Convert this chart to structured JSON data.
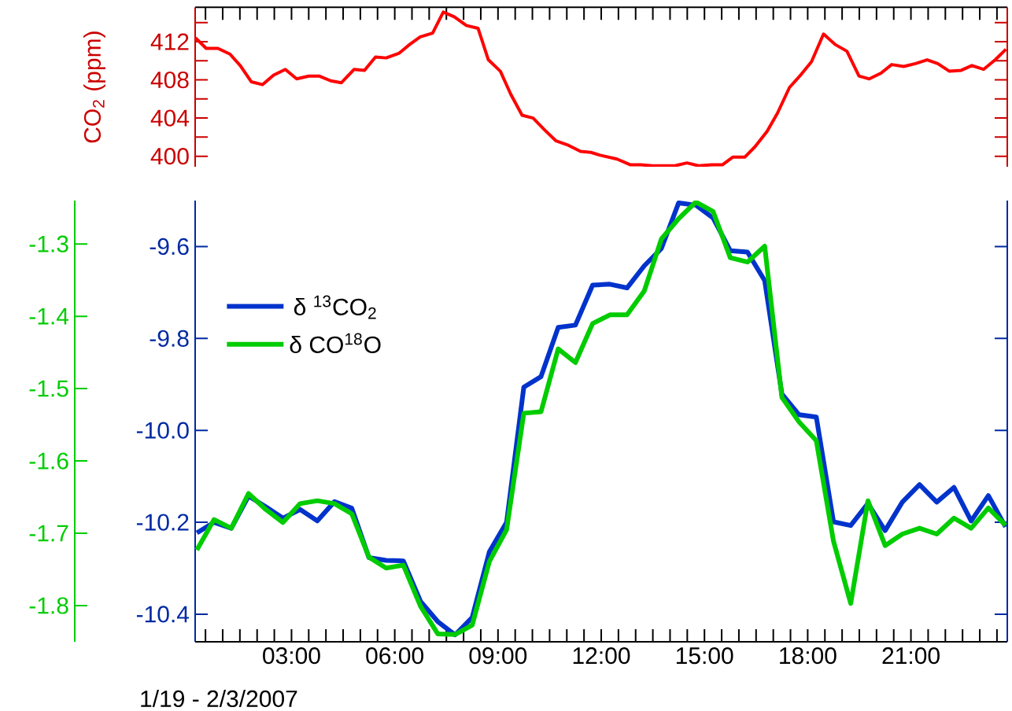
{
  "chart_data": [
    {
      "type": "line",
      "ylabel": "CO$_{2}$ (ppm)",
      "color": "#ff0000",
      "line_style": "solid",
      "tick_labels": "y",
      "x": [
        0.21,
        0.52,
        0.86,
        1.21,
        1.51,
        1.83,
        2.16,
        2.48,
        2.82,
        3.15,
        3.5,
        3.8,
        4.14,
        4.45,
        4.82,
        5.12,
        5.44,
        5.75,
        6.13,
        6.43,
        6.74,
        7.1,
        7.41,
        7.73,
        8.08,
        8.42,
        8.72,
        9.07,
        9.37,
        9.7,
        10.02,
        10.37,
        10.69,
        11.01,
        11.4,
        11.7,
        11.97,
        12.46,
        12.85,
        13.15,
        13.49,
        13.84,
        14.14,
        14.49,
        14.83,
        15.21,
        15.52,
        15.82,
        16.17,
        16.47,
        16.82,
        17.12,
        17.47,
        17.77,
        18.11,
        18.46,
        18.8,
        19.14,
        19.49,
        19.79,
        20.13,
        20.44,
        20.79,
        21.13,
        21.47,
        21.78,
        22.12,
        22.46,
        22.77,
        23.11,
        23.45,
        23.76
      ],
      "values": [
        412.4,
        411.3,
        411.3,
        410.7,
        409.5,
        407.8,
        407.5,
        408.5,
        409.1,
        408.1,
        408.4,
        408.4,
        407.9,
        407.7,
        409.1,
        409.0,
        410.4,
        410.3,
        410.8,
        411.7,
        412.5,
        412.9,
        415.1,
        414.6,
        413.7,
        413.4,
        410.1,
        408.9,
        406.5,
        404.3,
        404.0,
        402.7,
        401.6,
        401.2,
        400.5,
        400.4,
        400.1,
        399.7,
        399.1,
        399.1,
        399.0,
        399.0,
        399.0,
        399.3,
        399.0,
        399.1,
        399.1,
        399.9,
        399.9,
        401.0,
        402.6,
        404.5,
        407.2,
        408.4,
        409.9,
        412.8,
        411.7,
        411.0,
        408.4,
        408.1,
        408.7,
        409.6,
        409.4,
        409.7,
        410.1,
        409.7,
        408.9,
        409.0,
        409.5,
        409.1,
        410.1,
        411.2
      ],
      "xlim": [
        0.2,
        23.8
      ],
      "ylim": [
        398.9,
        415.6
      ],
      "xticks": [
        {
          "value": 0.5,
          "label": null
        },
        {
          "value": 1,
          "label": null
        },
        {
          "value": 1.5,
          "label": null
        },
        {
          "value": 2,
          "label": null
        },
        {
          "value": 2.5,
          "label": null
        },
        3,
        {
          "value": 3.5,
          "label": null
        },
        {
          "value": 4,
          "label": null
        },
        {
          "value": 4.5,
          "label": null
        },
        {
          "value": 5,
          "label": null
        },
        {
          "value": 5.5,
          "label": null
        },
        6,
        {
          "value": 6.5,
          "label": null
        },
        {
          "value": 7,
          "label": null
        },
        {
          "value": 7.5,
          "label": null
        },
        {
          "value": 8,
          "label": null
        },
        {
          "value": 8.5,
          "label": null
        },
        9,
        {
          "value": 9.5,
          "label": null
        },
        {
          "value": 10,
          "label": null
        },
        {
          "value": 10.5,
          "label": null
        },
        {
          "value": 11,
          "label": null
        },
        {
          "value": 11.5,
          "label": null
        },
        12,
        {
          "value": 12.5,
          "label": null
        },
        {
          "value": 13,
          "label": null
        },
        {
          "value": 13.5,
          "label": null
        },
        {
          "value": 14,
          "label": null
        },
        {
          "value": 14.5,
          "label": null
        },
        15,
        {
          "value": 15.5,
          "label": null
        },
        {
          "value": 16,
          "label": null
        },
        {
          "value": 16.5,
          "label": null
        },
        {
          "value": 17,
          "label": null
        },
        {
          "value": 17.5,
          "label": null
        },
        18,
        {
          "value": 18.5,
          "label": null
        },
        {
          "value": 19,
          "label": null
        },
        {
          "value": 19.5,
          "label": null
        },
        {
          "value": 20,
          "label": null
        },
        {
          "value": 20.5,
          "label": null
        },
        21,
        {
          "value": 21.5,
          "label": null
        },
        {
          "value": 22,
          "label": null
        },
        {
          "value": 22.5,
          "label": null
        },
        {
          "value": 23,
          "label": null
        },
        {
          "value": 23.5,
          "label": null
        }
      ],
      "yticks": [
        400,
        {
          "value": 402,
          "label": null
        },
        404,
        {
          "value": 406,
          "label": null
        },
        408,
        {
          "value": 410,
          "label": null
        },
        412,
        {
          "value": 414,
          "label": null
        }
      ]
    },
    {
      "type": "line",
      "xlabel": "1/19 - 2/3/2007",
      "line_style": "solid",
      "legend": "top left",
      "x": [
        0.25,
        0.75,
        1.25,
        1.75,
        2.25,
        2.75,
        3.25,
        3.75,
        4.25,
        4.75,
        5.25,
        5.75,
        6.25,
        6.75,
        7.25,
        7.75,
        8.25,
        8.75,
        9.25,
        9.75,
        10.25,
        10.75,
        11.25,
        11.75,
        12.25,
        12.75,
        13.25,
        13.75,
        14.25,
        14.75,
        15.25,
        15.75,
        16.25,
        16.75,
        17.25,
        17.75,
        18.25,
        18.75,
        19.25,
        19.75,
        20.25,
        20.75,
        21.25,
        21.75,
        22.25,
        22.75,
        23.25,
        23.75
      ],
      "series": [
        {
          "name": "δ $^{13}$CO$_{2}$",
          "color": "#0033cc",
          "values": [
            -10.223,
            -10.2,
            -10.213,
            -10.143,
            -10.166,
            -10.191,
            -10.172,
            -10.197,
            -10.155,
            -10.169,
            -10.277,
            -10.283,
            -10.284,
            -10.372,
            -10.416,
            -10.445,
            -10.407,
            -10.264,
            -10.2,
            -9.906,
            -9.883,
            -9.776,
            -9.771,
            -9.684,
            -9.682,
            -9.69,
            -9.642,
            -9.604,
            -9.505,
            -9.51,
            -9.538,
            -9.609,
            -9.612,
            -9.674,
            -9.921,
            -9.966,
            -9.971,
            -10.199,
            -10.207,
            -10.159,
            -10.218,
            -10.156,
            -10.118,
            -10.156,
            -10.124,
            -10.197,
            -10.142,
            -10.21
          ]
        },
        {
          "name": "δ CO$^{18}$O",
          "color": "#00cc00",
          "axis": "y2",
          "values": [
            -1.723,
            -1.681,
            -1.693,
            -1.645,
            -1.667,
            -1.685,
            -1.659,
            -1.655,
            -1.659,
            -1.673,
            -1.733,
            -1.748,
            -1.744,
            -1.801,
            -1.839,
            -1.84,
            -1.827,
            -1.739,
            -1.695,
            -1.534,
            -1.532,
            -1.445,
            -1.464,
            -1.41,
            -1.398,
            -1.398,
            -1.365,
            -1.293,
            -1.265,
            -1.242,
            -1.255,
            -1.319,
            -1.325,
            -1.303,
            -1.512,
            -1.546,
            -1.572,
            -1.711,
            -1.797,
            -1.655,
            -1.717,
            -1.701,
            -1.693,
            -1.701,
            -1.679,
            -1.693,
            -1.665,
            -1.689
          ]
        }
      ],
      "xlim": [
        0.2,
        23.8
      ],
      "ylim": [
        -10.46,
        -9.5
      ],
      "y2lim": [
        -1.85,
        -1.24
      ],
      "xticks": [
        {
          "value": 0.5,
          "label": null
        },
        {
          "value": 1,
          "label": null
        },
        {
          "value": 1.5,
          "label": null
        },
        {
          "value": 2,
          "label": null
        },
        {
          "value": 2.5,
          "label": null
        },
        {
          "value": 3,
          "label": "03:00"
        },
        {
          "value": 3.5,
          "label": null
        },
        {
          "value": 4,
          "label": null
        },
        {
          "value": 4.5,
          "label": null
        },
        {
          "value": 5,
          "label": null
        },
        {
          "value": 5.5,
          "label": null
        },
        {
          "value": 6,
          "label": "06:00"
        },
        {
          "value": 6.5,
          "label": null
        },
        {
          "value": 7,
          "label": null
        },
        {
          "value": 7.5,
          "label": null
        },
        {
          "value": 8,
          "label": null
        },
        {
          "value": 8.5,
          "label": null
        },
        {
          "value": 9,
          "label": "09:00"
        },
        {
          "value": 9.5,
          "label": null
        },
        {
          "value": 10,
          "label": null
        },
        {
          "value": 10.5,
          "label": null
        },
        {
          "value": 11,
          "label": null
        },
        {
          "value": 11.5,
          "label": null
        },
        {
          "value": 12,
          "label": "12:00"
        },
        {
          "value": 12.5,
          "label": null
        },
        {
          "value": 13,
          "label": null
        },
        {
          "value": 13.5,
          "label": null
        },
        {
          "value": 14,
          "label": null
        },
        {
          "value": 14.5,
          "label": null
        },
        {
          "value": 15,
          "label": "15:00"
        },
        {
          "value": 15.5,
          "label": null
        },
        {
          "value": 16,
          "label": null
        },
        {
          "value": 16.5,
          "label": null
        },
        {
          "value": 17,
          "label": null
        },
        {
          "value": 17.5,
          "label": null
        },
        {
          "value": 18,
          "label": "18:00"
        },
        {
          "value": 18.5,
          "label": null
        },
        {
          "value": 19,
          "label": null
        },
        {
          "value": 19.5,
          "label": null
        },
        {
          "value": 20,
          "label": null
        },
        {
          "value": 20.5,
          "label": null
        },
        {
          "value": 21,
          "label": "21:00"
        },
        {
          "value": 21.5,
          "label": null
        },
        {
          "value": 22,
          "label": null
        },
        {
          "value": 22.5,
          "label": null
        },
        {
          "value": 23,
          "label": null
        },
        {
          "value": 23.5,
          "label": null
        }
      ],
      "yticks": [
        -10.4,
        -10.2,
        {
          "value": -10.0,
          "label": "-10.0"
        },
        -9.8,
        -9.6
      ],
      "y2ticks": [
        -1.8,
        -1.7,
        -1.6,
        -1.5,
        -1.4,
        -1.3
      ]
    }
  ]
}
